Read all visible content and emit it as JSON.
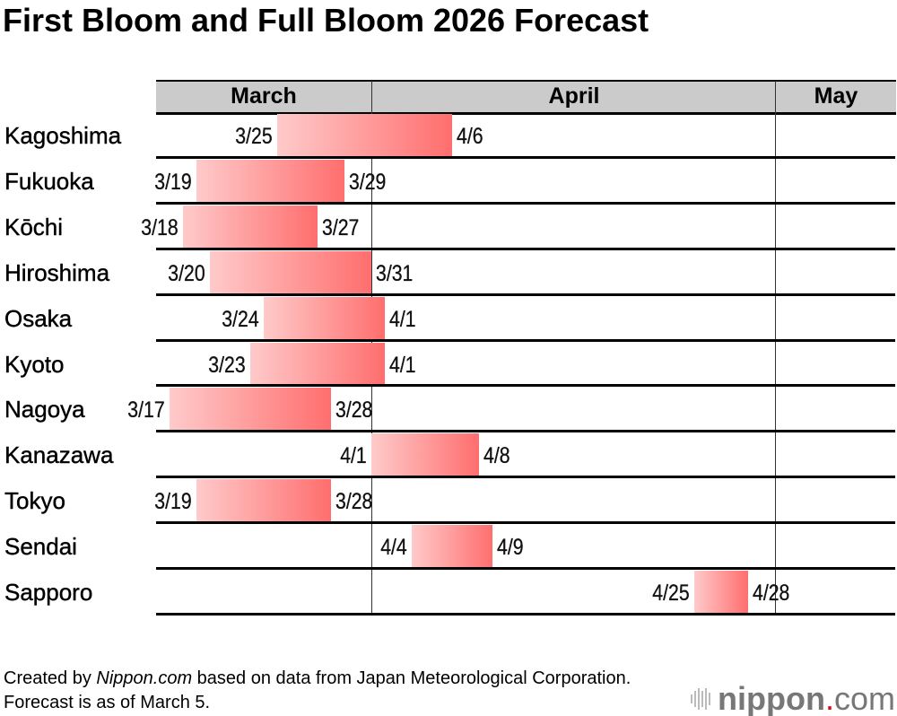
{
  "title": "First Bloom and Full Bloom 2026 Forecast",
  "chart_data": {
    "type": "gantt",
    "title": "First Bloom and Full Bloom 2026 Forecast",
    "months": [
      "March",
      "April",
      "May"
    ],
    "x_range": [
      "3/16",
      "5/4"
    ],
    "bar_gradient": [
      "#ffcaca",
      "#ff6e6e"
    ],
    "rows": [
      {
        "city": "Kagoshima",
        "first_bloom": "3/25",
        "full_bloom": "4/6"
      },
      {
        "city": "Fukuoka",
        "first_bloom": "3/19",
        "full_bloom": "3/29"
      },
      {
        "city": "Kōchi",
        "first_bloom": "3/18",
        "full_bloom": "3/27"
      },
      {
        "city": "Hiroshima",
        "first_bloom": "3/20",
        "full_bloom": "3/31"
      },
      {
        "city": "Osaka",
        "first_bloom": "3/24",
        "full_bloom": "4/1"
      },
      {
        "city": "Kyoto",
        "first_bloom": "3/23",
        "full_bloom": "4/1"
      },
      {
        "city": "Nagoya",
        "first_bloom": "3/17",
        "full_bloom": "3/28"
      },
      {
        "city": "Kanazawa",
        "first_bloom": "4/1",
        "full_bloom": "4/8"
      },
      {
        "city": "Tokyo",
        "first_bloom": "3/19",
        "full_bloom": "3/28"
      },
      {
        "city": "Sendai",
        "first_bloom": "4/4",
        "full_bloom": "4/9"
      },
      {
        "city": "Sapporo",
        "first_bloom": "4/25",
        "full_bloom": "4/28"
      }
    ]
  },
  "footer": {
    "prefix": "Created by ",
    "source": "Nippon.com",
    "suffix": " based on data from Japan Meteorological Corporation. Forecast is as of March 5."
  },
  "logo": {
    "text": "nippon",
    "dot": ".",
    "tld": "com",
    "dot_color": "#e60012"
  }
}
